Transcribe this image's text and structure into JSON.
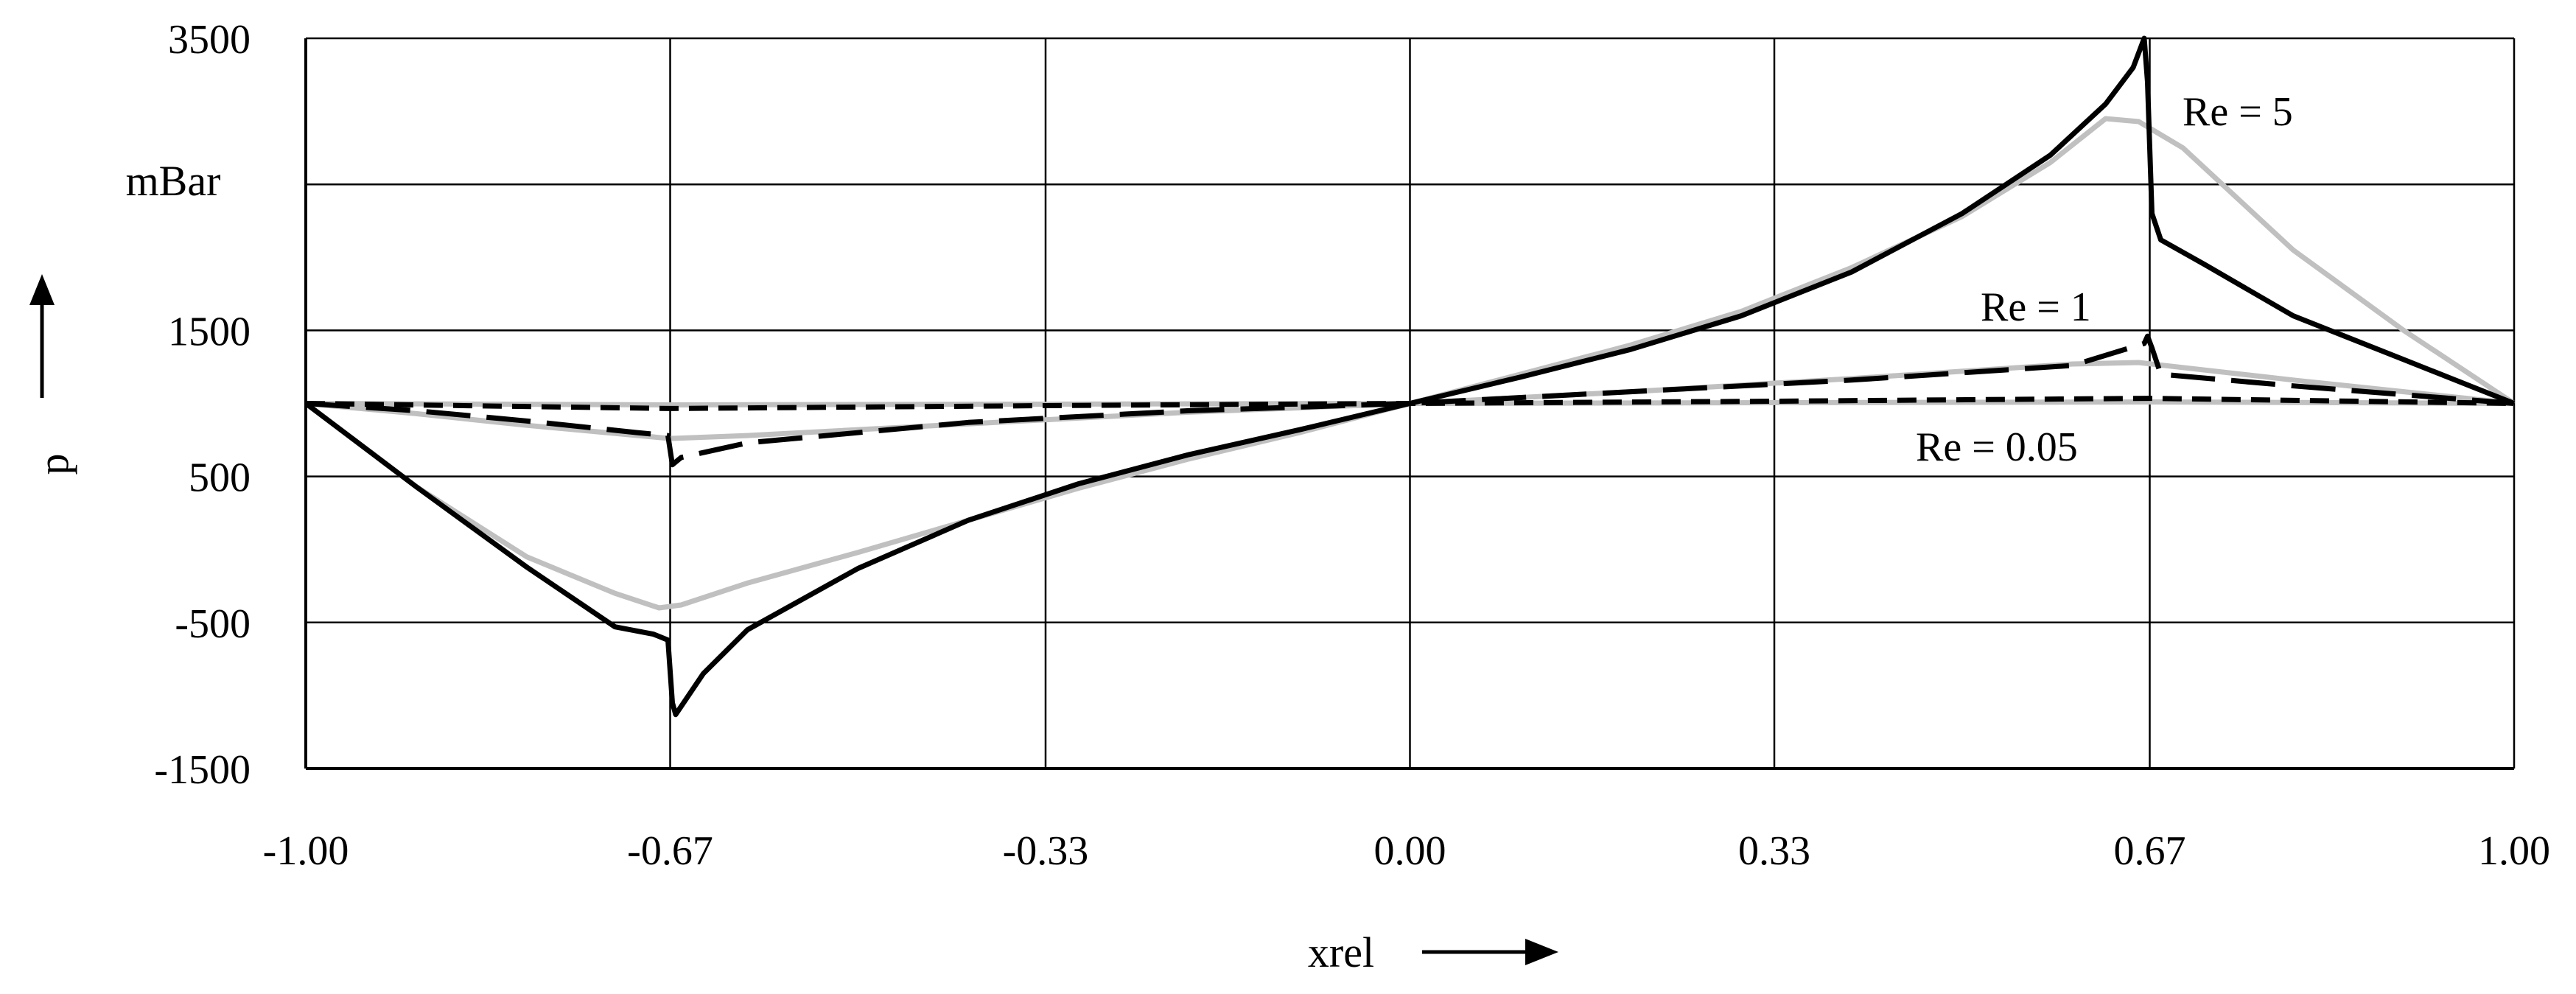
{
  "chart_data": {
    "type": "line",
    "xlabel": "xrel",
    "ylabel": "p",
    "yunit": "mBar",
    "xlim": [
      -1.0,
      1.0
    ],
    "ylim": [
      -1500,
      3500
    ],
    "x_ticks": [
      "-1.00",
      "-0.67",
      "-0.33",
      "0.00",
      "0.33",
      "0.67",
      "1.00"
    ],
    "x_tick_values": [
      -1.0,
      -0.67,
      -0.33,
      0.0,
      0.33,
      0.67,
      1.0
    ],
    "y_ticks": [
      "-1500",
      "-500",
      "500",
      "1500",
      "3500"
    ],
    "y_tick_values": [
      -1500,
      -500,
      500,
      1500,
      3500
    ],
    "y_gridlines": [
      -1500,
      -500,
      500,
      1500,
      2500,
      3500
    ],
    "grid": true,
    "series": [
      {
        "name": "Re = 5",
        "color": "#000000",
        "dash": "solid",
        "x": [
          -1.0,
          -0.9,
          -0.8,
          -0.72,
          -0.685,
          -0.672,
          -0.668,
          -0.665,
          -0.64,
          -0.6,
          -0.5,
          -0.4,
          -0.3,
          -0.2,
          -0.1,
          0.0,
          0.1,
          0.2,
          0.3,
          0.4,
          0.5,
          0.58,
          0.63,
          0.655,
          0.665,
          0.668,
          0.672,
          0.68,
          0.72,
          0.8,
          0.9,
          1.0
        ],
        "y": [
          1000,
          430,
          -120,
          -530,
          -580,
          -620,
          -1050,
          -1130,
          -850,
          -550,
          -130,
          200,
          450,
          650,
          820,
          1000,
          1180,
          1370,
          1600,
          1900,
          2300,
          2700,
          3050,
          3300,
          3500,
          3200,
          2300,
          2120,
          1950,
          1600,
          1300,
          1000
        ]
      },
      {
        "name": "Re = 1",
        "color": "#000000",
        "dash": "long-dash",
        "x": [
          -1.0,
          -0.9,
          -0.8,
          -0.7,
          -0.672,
          -0.668,
          -0.66,
          -0.6,
          -0.4,
          -0.2,
          0.0,
          0.2,
          0.4,
          0.6,
          0.665,
          0.668,
          0.672,
          0.68,
          0.8,
          0.9,
          1.0
        ],
        "y": [
          1000,
          950,
          880,
          800,
          780,
          580,
          630,
          730,
          870,
          950,
          1000,
          1080,
          1160,
          1260,
          1410,
          1460,
          1380,
          1200,
          1120,
          1060,
          1000
        ]
      },
      {
        "name": "Re = 0.05",
        "color": "#000000",
        "dash": "short-dash",
        "x": [
          -1.0,
          -0.67,
          -0.33,
          0.0,
          0.33,
          0.67,
          1.0
        ],
        "y": [
          1000,
          965,
          985,
          1000,
          1015,
          1035,
          1000
        ]
      },
      {
        "name": "",
        "color": "#c0c0c0",
        "dash": "solid",
        "x": [
          -1.0,
          -0.9,
          -0.8,
          -0.72,
          -0.68,
          -0.66,
          -0.6,
          -0.5,
          -0.4,
          -0.3,
          -0.2,
          -0.1,
          0.0,
          0.1,
          0.2,
          0.3,
          0.4,
          0.5,
          0.58,
          0.63,
          0.66,
          0.7,
          0.8,
          0.9,
          1.0
        ],
        "y": [
          1000,
          430,
          -50,
          -300,
          -400,
          -380,
          -230,
          -20,
          200,
          420,
          620,
          800,
          1000,
          1200,
          1400,
          1630,
          1930,
          2280,
          2650,
          2950,
          2930,
          2750,
          2050,
          1500,
          1000
        ]
      },
      {
        "name": "",
        "color": "#c0c0c0",
        "dash": "solid",
        "x": [
          -1.0,
          -0.9,
          -0.8,
          -0.67,
          -0.6,
          -0.4,
          -0.2,
          0.0,
          0.2,
          0.4,
          0.6,
          0.66,
          0.8,
          0.9,
          1.0
        ],
        "y": [
          1000,
          930,
          850,
          760,
          780,
          860,
          940,
          1000,
          1080,
          1170,
          1270,
          1280,
          1160,
          1080,
          1000
        ]
      },
      {
        "name": "",
        "color": "#c0c0c0",
        "dash": "solid",
        "x": [
          -1.0,
          -0.67,
          -0.33,
          0.0,
          0.33,
          0.67,
          1.0
        ],
        "y": [
          1000,
          990,
          995,
          1000,
          1005,
          1010,
          1000
        ]
      }
    ]
  }
}
